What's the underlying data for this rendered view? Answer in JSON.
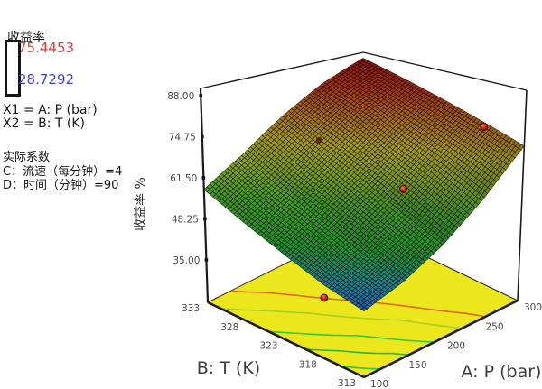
{
  "legend": {
    "title": "收益率",
    "max": "75.4453",
    "min": "28.7292",
    "max_color": "#e03c3c",
    "min_color": "#4343d9"
  },
  "factors": {
    "x1": "X1 = A: P (bar)",
    "x2": "X2 = B: T (K)"
  },
  "actual": {
    "title": "实际系数",
    "c": "C：流速（每分钟）=4",
    "d": "D：时间（分钟）=90"
  },
  "chart_data": {
    "type": "surface3d",
    "x_axis": {
      "label": "A: P (bar)",
      "ticks": [
        "100",
        "150",
        "200",
        "250",
        "300"
      ],
      "range": [
        100,
        300
      ]
    },
    "y_axis": {
      "label": "B: T (K)",
      "ticks": [
        "333",
        "328",
        "323",
        "318",
        "313"
      ],
      "range": [
        313,
        333
      ]
    },
    "z_axis": {
      "label": "收益率 %",
      "ticks": [
        88,
        74.75,
        61.5,
        48.25,
        35
      ],
      "tick_labels": [
        "88.00",
        "74.75",
        "61.50",
        "48.25",
        "35.00"
      ]
    },
    "response_range": {
      "min": 28.7292,
      "max": 75.4453
    },
    "surface_z": {
      "A_values": [
        100,
        150,
        200,
        250,
        300
      ],
      "B_values": [
        313,
        318,
        323,
        328,
        333
      ],
      "z": [
        [
          41.5,
          45,
          51,
          60,
          72
        ],
        [
          44,
          49,
          56,
          66,
          76
        ],
        [
          48,
          54,
          62,
          71,
          80
        ],
        [
          52.5,
          59,
          68,
          77,
          84
        ],
        [
          57.7,
          65,
          74,
          82,
          88
        ]
      ]
    },
    "contours": [
      {
        "level": 62,
        "color": "#e06818"
      },
      {
        "level": 56,
        "color": "#a8d01e"
      },
      {
        "level": 50,
        "color": "#2fcb2f"
      },
      {
        "level": 46,
        "color": "#2db42d"
      },
      {
        "level": 43,
        "color": "#31c431"
      }
    ],
    "design_points": [
      {
        "A": 300,
        "B": 318,
        "response": 74.5,
        "dim": false
      },
      {
        "A": 200,
        "B": 318,
        "response": 64,
        "dim": false
      },
      {
        "A": 150,
        "B": 323,
        "response": 28.7,
        "dim": false
      },
      {
        "A": 195,
        "B": 328,
        "response": 71,
        "dim": true
      }
    ],
    "colormap": [
      [
        40,
        "#2a3fbb"
      ],
      [
        44,
        "#1d7f99"
      ],
      [
        50,
        "#22a12c"
      ],
      [
        57,
        "#4fb02a"
      ],
      [
        63,
        "#9fc122"
      ],
      [
        69,
        "#d2c31c"
      ],
      [
        75,
        "#cf8116"
      ],
      [
        81,
        "#c03c12"
      ],
      [
        86,
        "#a81e0e"
      ],
      [
        90,
        "#8c130b"
      ]
    ],
    "floor_color": "#ece71d"
  }
}
